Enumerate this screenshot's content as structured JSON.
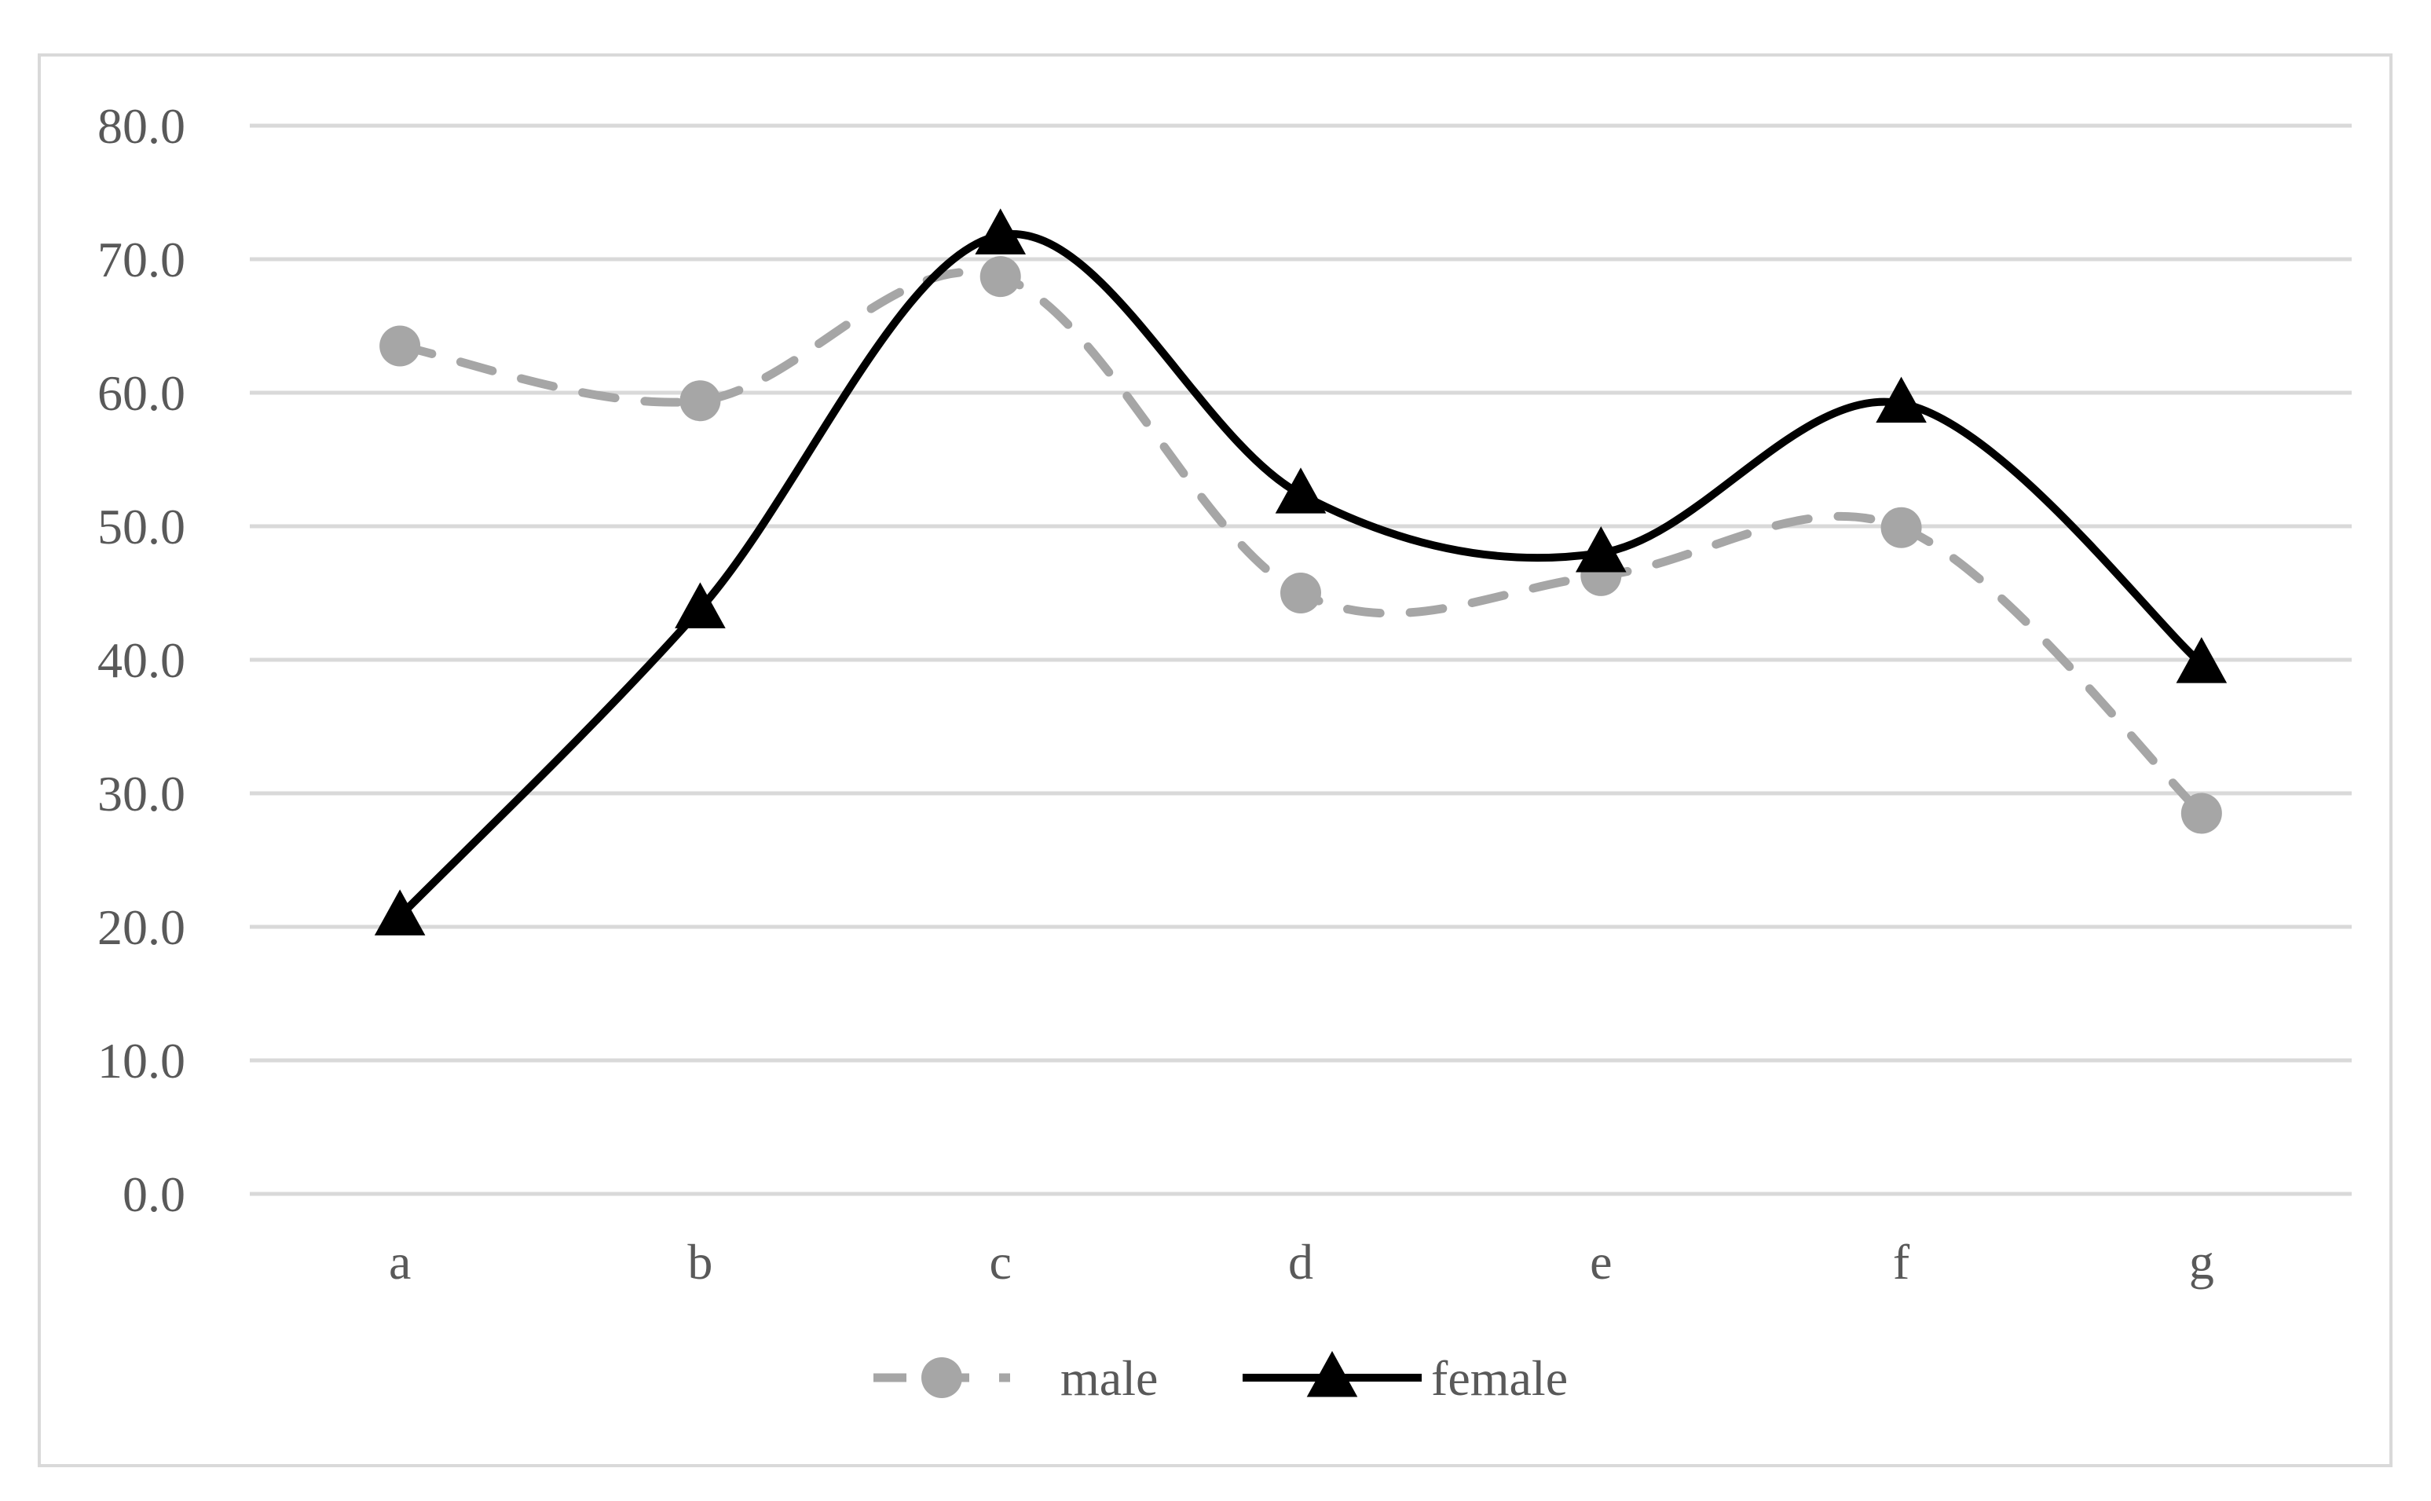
{
  "chart_data": {
    "type": "line",
    "categories": [
      "a",
      "b",
      "c",
      "d",
      "e",
      "f",
      "g"
    ],
    "series": [
      {
        "name": "male",
        "values": [
          63.5,
          59.4,
          68.7,
          45.0,
          46.3,
          49.9,
          28.5
        ],
        "color": "#a6a6a6",
        "style": "dashed",
        "marker": "circle"
      },
      {
        "name": "female",
        "values": [
          20.8,
          43.8,
          71.8,
          52.4,
          48.0,
          59.2,
          39.7
        ],
        "color": "#000000",
        "style": "solid",
        "marker": "triangle"
      }
    ],
    "ylim": [
      0,
      80
    ],
    "yticks": [
      "0.0",
      "10.0",
      "20.0",
      "30.0",
      "40.0",
      "50.0",
      "60.0",
      "70.0",
      "80.0"
    ],
    "grid": true,
    "legend": "bottom-center",
    "smooth": true,
    "gridColor": "#d9d9d9",
    "tickLabelColor": "#595959"
  }
}
